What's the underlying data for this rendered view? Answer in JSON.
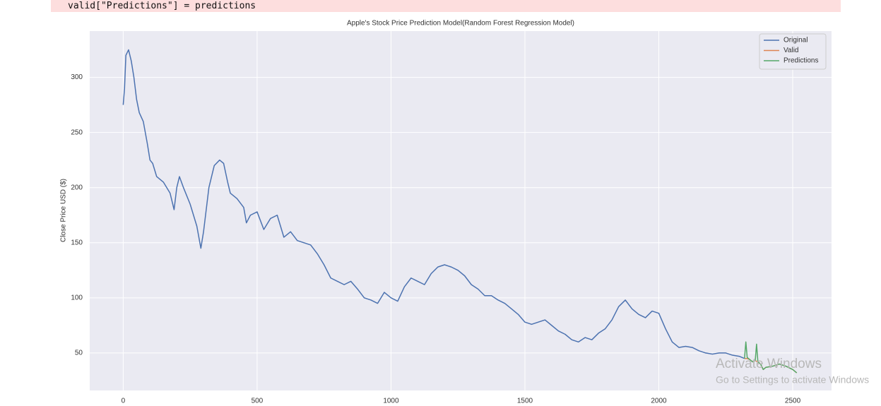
{
  "code_line": "valid[\"Predictions\"] = predictions",
  "watermark": {
    "title": "Activate Windows",
    "subtitle": "Go to Settings to activate Windows"
  },
  "chart_data": {
    "type": "line",
    "title": "Apple's Stock Price Prediction Model(Random Forest Regression Model)",
    "y_label": "Close Price USD ($)",
    "xlim": [
      -125,
      2645
    ],
    "ylim": [
      16,
      342
    ],
    "xticks": [
      0,
      500,
      1000,
      1500,
      2000,
      2500
    ],
    "yticks": [
      50,
      100,
      150,
      200,
      250,
      300
    ],
    "grid": true,
    "legend": "upper right",
    "series": [
      {
        "name": "Original",
        "color": "#4c72b0",
        "x": [
          0,
          5,
          10,
          20,
          30,
          40,
          50,
          60,
          75,
          90,
          100,
          110,
          125,
          150,
          175,
          190,
          200,
          210,
          225,
          250,
          275,
          290,
          300,
          320,
          340,
          360,
          375,
          390,
          400,
          425,
          450,
          460,
          475,
          500,
          525,
          550,
          575,
          600,
          625,
          650,
          675,
          700,
          725,
          750,
          775,
          800,
          825,
          850,
          875,
          900,
          925,
          950,
          975,
          1000,
          1025,
          1050,
          1075,
          1100,
          1125,
          1150,
          1175,
          1200,
          1225,
          1250,
          1275,
          1300,
          1325,
          1350,
          1375,
          1400,
          1425,
          1450,
          1475,
          1500,
          1525,
          1550,
          1575,
          1600,
          1625,
          1650,
          1675,
          1700,
          1725,
          1750,
          1775,
          1800,
          1825,
          1850,
          1875,
          1900,
          1925,
          1950,
          1975,
          2000,
          2025,
          2050,
          2075,
          2100,
          2125,
          2150,
          2175,
          2200,
          2225,
          2250,
          2275,
          2300,
          2320
        ],
        "values": [
          275,
          290,
          320,
          325,
          315,
          300,
          280,
          268,
          260,
          240,
          225,
          222,
          210,
          205,
          195,
          180,
          200,
          210,
          200,
          185,
          165,
          145,
          160,
          200,
          220,
          225,
          222,
          205,
          195,
          190,
          182,
          168,
          175,
          178,
          162,
          172,
          175,
          155,
          160,
          152,
          150,
          148,
          140,
          130,
          118,
          115,
          112,
          115,
          108,
          100,
          98,
          95,
          105,
          100,
          97,
          110,
          118,
          115,
          112,
          122,
          128,
          130,
          128,
          125,
          120,
          112,
          108,
          102,
          102,
          98,
          95,
          90,
          85,
          78,
          76,
          78,
          80,
          75,
          70,
          67,
          62,
          60,
          64,
          62,
          68,
          72,
          80,
          92,
          98,
          90,
          85,
          82,
          88,
          86,
          72,
          60,
          55,
          56,
          55,
          52,
          50,
          49,
          50,
          50,
          48,
          47,
          45
        ]
      },
      {
        "name": "Valid",
        "color": "#dd8452",
        "x": [
          2320,
          2330,
          2340,
          2350,
          2360,
          2370,
          2380,
          2390,
          2400,
          2425,
          2450,
          2475,
          2500,
          2515
        ],
        "values": [
          45,
          45,
          44,
          42,
          43,
          42,
          40,
          35,
          37,
          38,
          40,
          38,
          35,
          32
        ]
      },
      {
        "name": "Predictions",
        "color": "#55a868",
        "x": [
          2320,
          2325,
          2330,
          2340,
          2350,
          2360,
          2365,
          2370,
          2380,
          2390,
          2400,
          2425,
          2450,
          2475,
          2500,
          2515
        ],
        "values": [
          45,
          60,
          46,
          44,
          42,
          43,
          58,
          42,
          40,
          35,
          37,
          38,
          40,
          38,
          35,
          32
        ]
      }
    ]
  }
}
